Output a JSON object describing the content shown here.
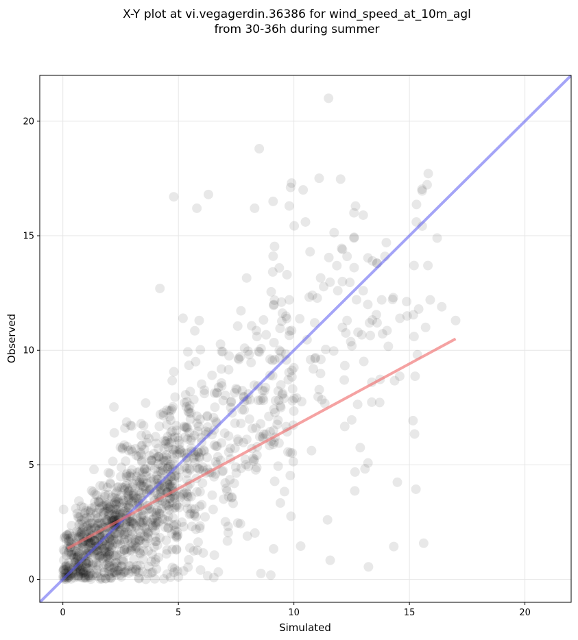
{
  "chart_data": {
    "type": "scatter",
    "title": [
      "X-Y plot at vi.vegagerdin.36386 for wind_speed_at_10m_agl",
      "from 30-36h during summer"
    ],
    "xlabel": "Simulated",
    "ylabel": "Observed",
    "xlim": [
      -1,
      22
    ],
    "ylim": [
      -1,
      22
    ],
    "xticks": [
      "0",
      "5",
      "10",
      "15",
      "20"
    ],
    "yticks": [
      "0",
      "5",
      "10",
      "15",
      "20"
    ],
    "grid": true,
    "colors": {
      "points": "#000000",
      "identity_line": "#5a5af0",
      "fit_line": "#f07070",
      "grid": "#e6e6e6"
    },
    "identity_line": {
      "x": [
        -1,
        22
      ],
      "y": [
        -1,
        22
      ]
    },
    "fit_line": {
      "x": [
        0.2,
        17.0
      ],
      "y": [
        1.35,
        10.5
      ]
    },
    "points_described": [
      [
        11.5,
        21.0
      ],
      [
        8.5,
        18.8
      ],
      [
        9.9,
        17.3
      ],
      [
        10.4,
        17.0
      ],
      [
        6.3,
        16.8
      ],
      [
        4.8,
        16.7
      ],
      [
        9.1,
        16.5
      ],
      [
        9.8,
        16.3
      ],
      [
        5.8,
        16.2
      ],
      [
        8.3,
        16.2
      ],
      [
        12.6,
        16.0
      ],
      [
        13.0,
        15.9
      ],
      [
        10.5,
        15.6
      ],
      [
        15.3,
        15.6
      ],
      [
        16.2,
        14.9
      ],
      [
        12.6,
        14.9
      ],
      [
        12.1,
        14.4
      ],
      [
        10.7,
        14.3
      ],
      [
        14.0,
        14.7
      ],
      [
        12.3,
        14.1
      ],
      [
        13.4,
        13.9
      ],
      [
        13.6,
        13.8
      ],
      [
        15.2,
        13.7
      ],
      [
        15.8,
        13.7
      ],
      [
        9.7,
        13.3
      ],
      [
        12.1,
        13.0
      ],
      [
        13.0,
        12.6
      ],
      [
        11.9,
        12.6
      ],
      [
        4.2,
        12.7
      ],
      [
        10.8,
        12.4
      ],
      [
        14.3,
        12.3
      ],
      [
        13.8,
        12.2
      ],
      [
        15.9,
        12.2
      ],
      [
        16.4,
        11.9
      ],
      [
        9.8,
        12.2
      ],
      [
        15.4,
        11.8
      ],
      [
        13.2,
        12.0
      ],
      [
        12.3,
        11.3
      ],
      [
        10.9,
        11.2
      ],
      [
        13.6,
        11.2
      ],
      [
        5.2,
        11.4
      ],
      [
        5.9,
        11.3
      ],
      [
        17.0,
        11.3
      ],
      [
        14.9,
        11.5
      ],
      [
        12.1,
        11.0
      ],
      [
        15.7,
        11.0
      ],
      [
        15.2,
        10.6
      ],
      [
        8.4,
        10.6
      ]
    ]
  }
}
